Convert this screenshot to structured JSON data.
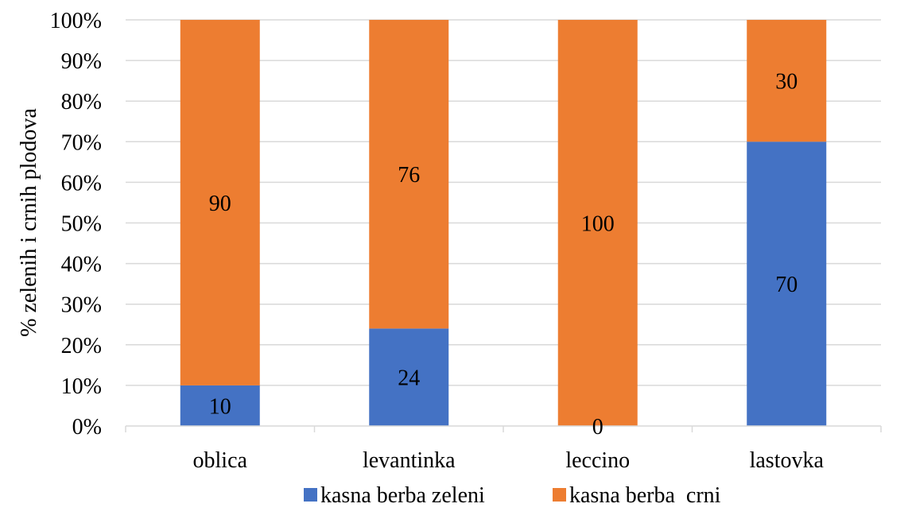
{
  "chart_data": {
    "type": "bar",
    "stacked": true,
    "percent_stacked": true,
    "categories": [
      "oblica",
      "levantinka",
      "leccino",
      "lastovka"
    ],
    "series": [
      {
        "name": "kasna berba zeleni",
        "color": "#4472C4",
        "values": [
          10,
          24,
          0,
          70
        ]
      },
      {
        "name": "kasna berba  crni",
        "color": "#ED7D31",
        "values": [
          90,
          76,
          100,
          30
        ]
      }
    ],
    "ylabel": "%  zelenih i crnih plodova",
    "xlabel": "",
    "ylim": [
      0,
      100
    ],
    "yticks": [
      "0%",
      "10%",
      "20%",
      "30%",
      "40%",
      "50%",
      "60%",
      "70%",
      "80%",
      "90%",
      "100%"
    ],
    "grid": true,
    "legend_position": "bottom"
  }
}
